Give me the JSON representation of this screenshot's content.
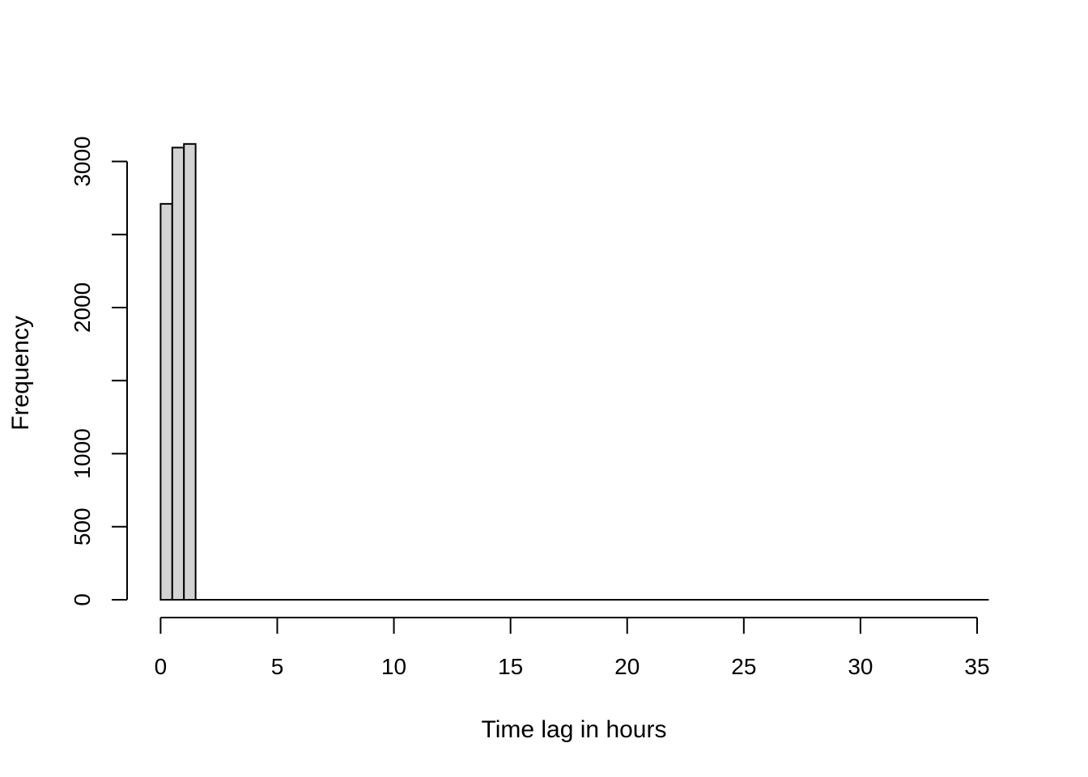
{
  "chart_data": {
    "type": "bar",
    "subtype": "histogram",
    "title": "",
    "xlabel": "Time lag in hours",
    "ylabel": "Frequency",
    "xlim": [
      0,
      35
    ],
    "ylim": [
      0,
      3000
    ],
    "x_ticks": [
      0,
      5,
      10,
      15,
      20,
      25,
      30,
      35
    ],
    "y_ticks": [
      0,
      500,
      1000,
      1500,
      2000,
      2500,
      3000
    ],
    "y_tick_labels": [
      {
        "value": 0,
        "label": "0"
      },
      {
        "value": 500,
        "label": "500"
      },
      {
        "value": 1000,
        "label": "1000"
      },
      {
        "value": 2000,
        "label": "2000"
      },
      {
        "value": 3000,
        "label": "3000"
      }
    ],
    "bins": [
      {
        "start": 0.0,
        "end": 0.5,
        "count": 2710
      },
      {
        "start": 0.5,
        "end": 1.0,
        "count": 3095
      },
      {
        "start": 1.0,
        "end": 1.5,
        "count": 3120
      },
      {
        "start": 1.5,
        "end": 35.5,
        "count": 0
      }
    ],
    "bar_fill": "#d3d3d3",
    "bar_stroke": "#000000",
    "grid": false,
    "legend": "none"
  }
}
